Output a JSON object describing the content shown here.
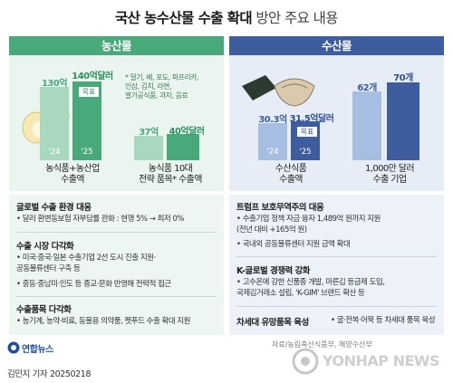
{
  "title": {
    "bold": "국산 농수산물 수출 확대",
    "rest": " 방안 주요 내용"
  },
  "agri": {
    "header": "농산물",
    "chart1": {
      "bars": [
        {
          "year": "'24",
          "value": 130,
          "label": "130억"
        },
        {
          "year": "'25",
          "value": 140,
          "label": "140억달러",
          "tag": "목표"
        }
      ],
      "caption": [
        "농식품+농산업",
        "수출액"
      ]
    },
    "note": [
      "* 딸기, 배, 포도, 파프리카,",
      "인삼, 김치, 라면,",
      "쌀가공식품, 과자, 음료"
    ],
    "chart2": {
      "bars": [
        {
          "value": 37,
          "label": "37억"
        },
        {
          "value": 40,
          "label": "40억달러"
        }
      ],
      "caption": [
        "농식품 10대",
        "전략 품목* 수출액"
      ]
    },
    "sections": [
      {
        "title": "글로벌 수출 환경 대응",
        "items": [
          "• 달러 환변동보험 자부담률 완화 : 현행 5% → 최저 0%"
        ]
      },
      {
        "title": "수출 시장 다각화",
        "items": [
          "• 미국·중국·일본 수출기업 2선 도시 진출 지원·",
          "  공동물류센터 구축 등",
          "• 중동·중남미·인도 등 종교·문화 반영해 전략적 접근"
        ]
      },
      {
        "title": "수출품목 다각화",
        "items": [
          "• 농기계, 농약·비료, 동물용 의약품, 펫푸드 수출 확대 지원"
        ]
      }
    ]
  },
  "fish": {
    "header": "수산물",
    "chart1": {
      "bars": [
        {
          "year": "'24",
          "value": 30.3,
          "label": "30.3억"
        },
        {
          "year": "'25",
          "value": 31.5,
          "label": "31.5억달러",
          "tag": "목표"
        }
      ],
      "caption": [
        "수산식품",
        "수출액"
      ]
    },
    "chart2": {
      "bars": [
        {
          "value": 62,
          "label": "62개"
        },
        {
          "value": 70,
          "label": "70개"
        }
      ],
      "caption": [
        "1,000만 달러",
        "수출 기업"
      ]
    },
    "sections": [
      {
        "title": "트럼프 보호무역주의 대응",
        "items": [
          "• 수출기업 정책 자금 융자 1,489억 원까지 지원",
          "  (전년 대비 +165억 원)",
          "• 국내외 공동물류센터 지원 금액 확대"
        ]
      },
      {
        "title": "K-글로벌 경쟁력 강화",
        "items": [
          "• 고수온에 강한 신품종 개발, 마른김 등급제 도입,",
          "  국제김거래소 설립, 'K-GIM' 브랜드 확산 등"
        ]
      },
      {
        "title": "차세대 유망품목 육성",
        "items": [
          "• 굴·전복·어묵 등 차세대 품목 육성"
        ]
      }
    ]
  },
  "source": "자료/농림축산식품부, 해양수산부",
  "logo": "연합뉴스",
  "credit": "김민지 기자  20250218",
  "watermark": "YONHAP NEWS",
  "colors": {
    "agri_dark": "#4aa97a",
    "agri_light": "#a8d8bd",
    "fish_dark": "#3d5d9e",
    "fish_light": "#a7bee3",
    "agri_text": "#2f8f5f",
    "fish_text": "#2e4f93"
  }
}
